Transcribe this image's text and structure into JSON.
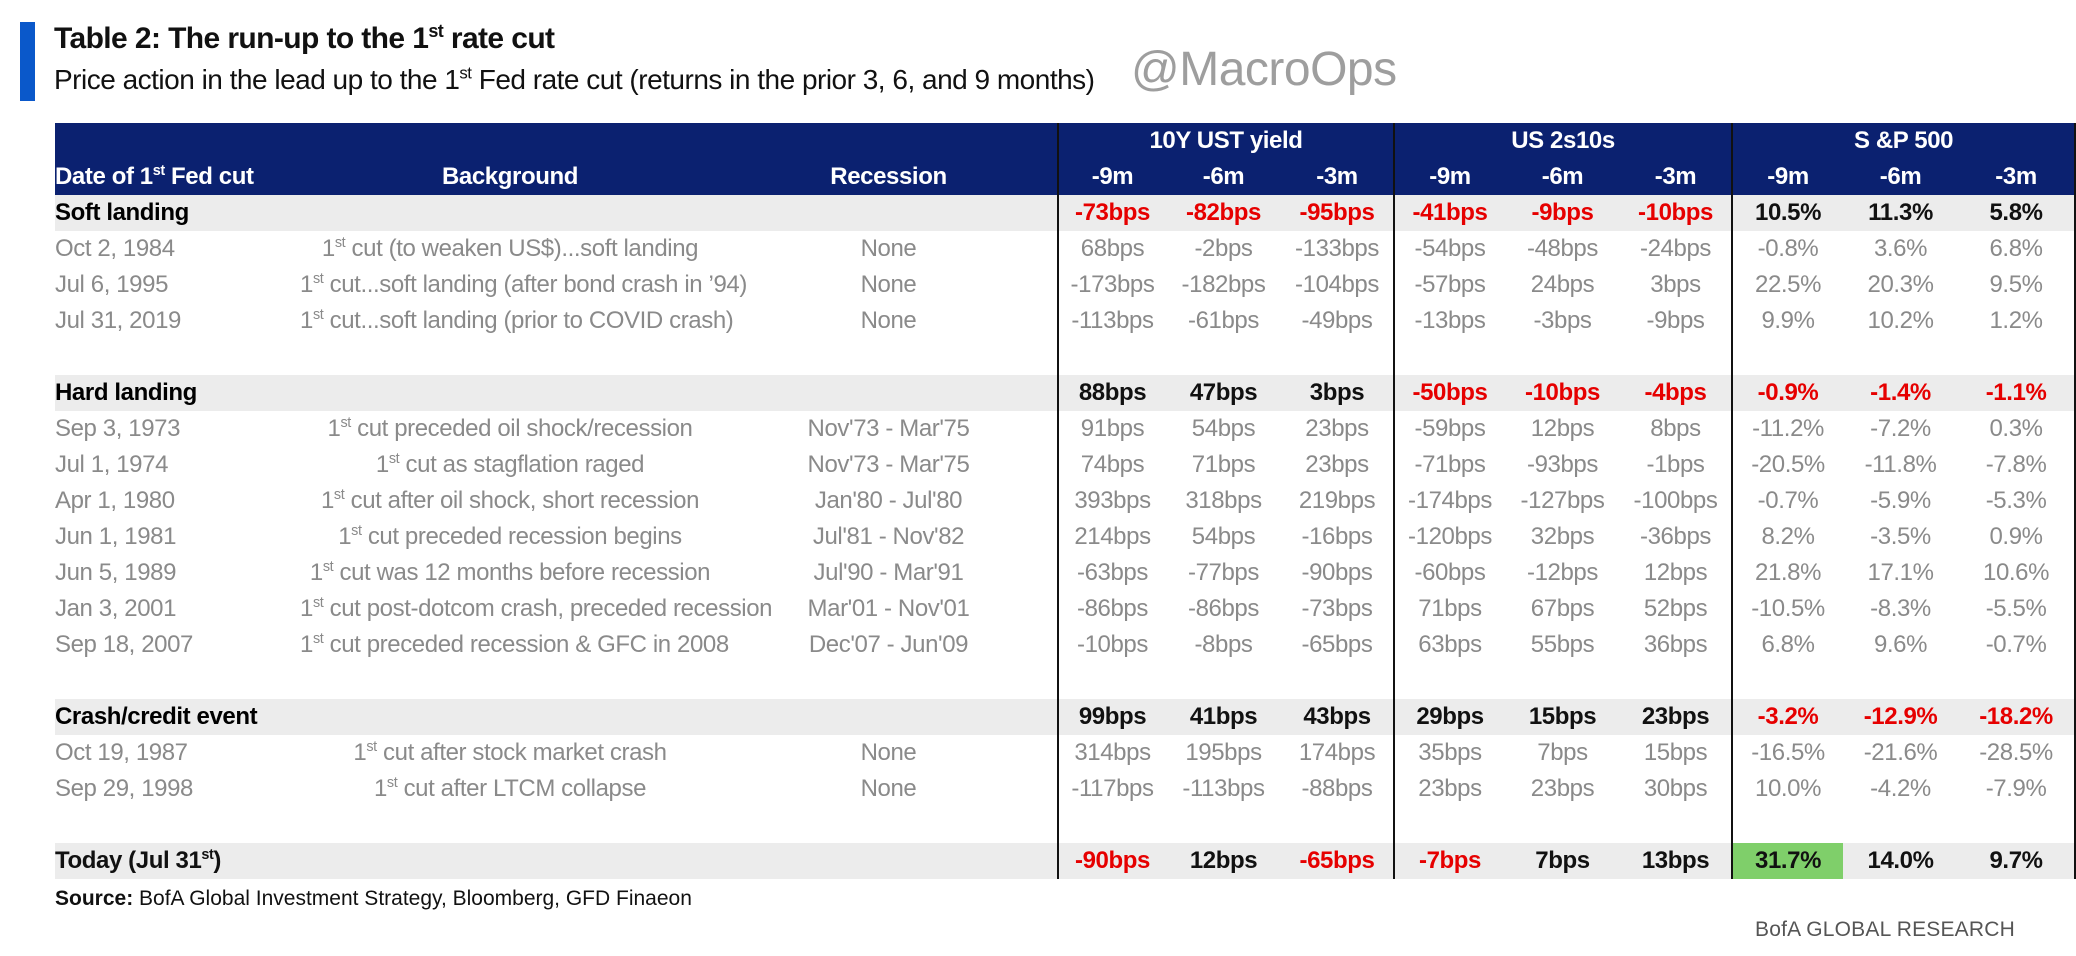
{
  "header": {
    "title_pre": "Table 2: The run-up to the 1",
    "title_sup": "st",
    "title_post": " rate cut",
    "subtitle_pre": "Price action in the lead up to the 1",
    "subtitle_sup": "st",
    "subtitle_post": " Fed rate cut (returns in the prior 3, 6, and 9 months)",
    "watermark": "@MacroOps"
  },
  "columns": {
    "date_pre": "Date of 1",
    "date_sup": "st",
    "date_post": " Fed cut",
    "background": "Background",
    "recession": "Recession",
    "group1": "10Y UST yield",
    "group2": "US 2s10s",
    "group3": "S &P 500",
    "m9": "-9m",
    "m6": "-6m",
    "m3": "-3m"
  },
  "sections": [
    {
      "label": "Soft landing",
      "values": [
        "-73bps",
        "-82bps",
        "-95bps",
        "-41bps",
        "-9bps",
        "-10bps",
        "10.5%",
        "11.3%",
        "5.8%"
      ],
      "red": [
        true,
        true,
        true,
        true,
        true,
        true,
        false,
        false,
        false
      ],
      "rows": [
        {
          "date": "Oct 2, 1984",
          "bg_pre": "1",
          "bg_sup": "st",
          "bg_post": " cut (to weaken US$)...soft landing",
          "recession": "None",
          "values": [
            "68bps",
            "-2bps",
            "-133bps",
            "-54bps",
            "-48bps",
            "-24bps",
            "-0.8%",
            "3.6%",
            "6.8%"
          ]
        },
        {
          "date": "Jul 6, 1995",
          "bg_pre": "1",
          "bg_sup": "st",
          "bg_post": " cut...soft landing (after bond crash in ’94)",
          "recession": "None",
          "values": [
            "-173bps",
            "-182bps",
            "-104bps",
            "-57bps",
            "24bps",
            "3bps",
            "22.5%",
            "20.3%",
            "9.5%"
          ]
        },
        {
          "date": "Jul 31, 2019",
          "bg_pre": "1",
          "bg_sup": "st",
          "bg_post": " cut...soft landing (prior to COVID crash)",
          "recession": "None",
          "values": [
            "-113bps",
            "-61bps",
            "-49bps",
            "-13bps",
            "-3bps",
            "-9bps",
            "9.9%",
            "10.2%",
            "1.2%"
          ]
        }
      ]
    },
    {
      "label": "Hard landing",
      "values": [
        "88bps",
        "47bps",
        "3bps",
        "-50bps",
        "-10bps",
        "-4bps",
        "-0.9%",
        "-1.4%",
        "-1.1%"
      ],
      "red": [
        false,
        false,
        false,
        true,
        true,
        true,
        true,
        true,
        true
      ],
      "rows": [
        {
          "date": "Sep 3, 1973",
          "bg_pre": "1",
          "bg_sup": "st",
          "bg_post": " cut preceded oil shock/recession",
          "recession": "Nov'73 - Mar'75",
          "values": [
            "91bps",
            "54bps",
            "23bps",
            "-59bps",
            "12bps",
            "8bps",
            "-11.2%",
            "-7.2%",
            "0.3%"
          ]
        },
        {
          "date": "Jul 1, 1974",
          "bg_pre": "1",
          "bg_sup": "st",
          "bg_post": " cut as stagflation raged",
          "recession": "Nov'73 - Mar'75",
          "values": [
            "74bps",
            "71bps",
            "23bps",
            "-71bps",
            "-93bps",
            "-1bps",
            "-20.5%",
            "-11.8%",
            "-7.8%"
          ]
        },
        {
          "date": "Apr 1, 1980",
          "bg_pre": "1",
          "bg_sup": "st",
          "bg_post": " cut after oil shock, short recession",
          "recession": "Jan'80 - Jul'80",
          "values": [
            "393bps",
            "318bps",
            "219bps",
            "-174bps",
            "-127bps",
            "-100bps",
            "-0.7%",
            "-5.9%",
            "-5.3%"
          ]
        },
        {
          "date": "Jun 1, 1981",
          "bg_pre": "1",
          "bg_sup": "st",
          "bg_post": " cut preceded recession begins",
          "recession": "Jul'81 - Nov'82",
          "values": [
            "214bps",
            "54bps",
            "-16bps",
            "-120bps",
            "32bps",
            "-36bps",
            "8.2%",
            "-3.5%",
            "0.9%"
          ]
        },
        {
          "date": "Jun 5, 1989",
          "bg_pre": "1",
          "bg_sup": "st",
          "bg_post": " cut was 12 months before recession",
          "recession": "Jul'90 - Mar'91",
          "values": [
            "-63bps",
            "-77bps",
            "-90bps",
            "-60bps",
            "-12bps",
            "12bps",
            "21.8%",
            "17.1%",
            "10.6%"
          ]
        },
        {
          "date": "Jan 3, 2001",
          "bg_pre": "1",
          "bg_sup": "st",
          "bg_post": " cut post-dotcom crash, preceded recession",
          "recession": "Mar'01 - Nov'01",
          "values": [
            "-86bps",
            "-86bps",
            "-73bps",
            "71bps",
            "67bps",
            "52bps",
            "-10.5%",
            "-8.3%",
            "-5.5%"
          ]
        },
        {
          "date": "Sep 18, 2007",
          "bg_pre": "1",
          "bg_sup": "st",
          "bg_post": " cut preceded recession & GFC in 2008",
          "recession": "Dec'07 - Jun'09",
          "values": [
            "-10bps",
            "-8bps",
            "-65bps",
            "63bps",
            "55bps",
            "36bps",
            "6.8%",
            "9.6%",
            "-0.7%"
          ]
        }
      ]
    },
    {
      "label": "Crash/credit event",
      "values": [
        "99bps",
        "41bps",
        "43bps",
        "29bps",
        "15bps",
        "23bps",
        "-3.2%",
        "-12.9%",
        "-18.2%"
      ],
      "red": [
        false,
        false,
        false,
        false,
        false,
        false,
        true,
        true,
        true
      ],
      "rows": [
        {
          "date": "Oct 19, 1987",
          "bg_pre": "1",
          "bg_sup": "st",
          "bg_post": " cut after stock market crash",
          "recession": "None",
          "values": [
            "314bps",
            "195bps",
            "174bps",
            "35bps",
            "7bps",
            "15bps",
            "-16.5%",
            "-21.6%",
            "-28.5%"
          ]
        },
        {
          "date": "Sep 29, 1998",
          "bg_pre": "1",
          "bg_sup": "st",
          "bg_post": " cut after LTCM collapse",
          "recession": "None",
          "values": [
            "-117bps",
            "-113bps",
            "-88bps",
            "23bps",
            "23bps",
            "30bps",
            "10.0%",
            "-4.2%",
            "-7.9%"
          ]
        }
      ]
    }
  ],
  "today": {
    "label_pre": "Today (Jul 31",
    "label_sup": "st",
    "label_post": ")",
    "values": [
      "-90bps",
      "12bps",
      "-65bps",
      "-7bps",
      "7bps",
      "13bps",
      "31.7%",
      "14.0%",
      "9.7%"
    ],
    "red": [
      true,
      false,
      true,
      true,
      false,
      false,
      false,
      false,
      false
    ],
    "highlight_index": 6,
    "highlight_color": "#7fcf6a"
  },
  "footer": {
    "source_label": "Source:",
    "source_text": " BofA Global Investment Strategy, Bloomberg, GFD Finaeon",
    "brand": "BofA GLOBAL RESEARCH"
  },
  "colors": {
    "header_bg": "#0b2170",
    "accent": "#0a58ca",
    "negative": "#e60000",
    "section_bg": "#ececec",
    "watermark": "#9e9e9e"
  }
}
